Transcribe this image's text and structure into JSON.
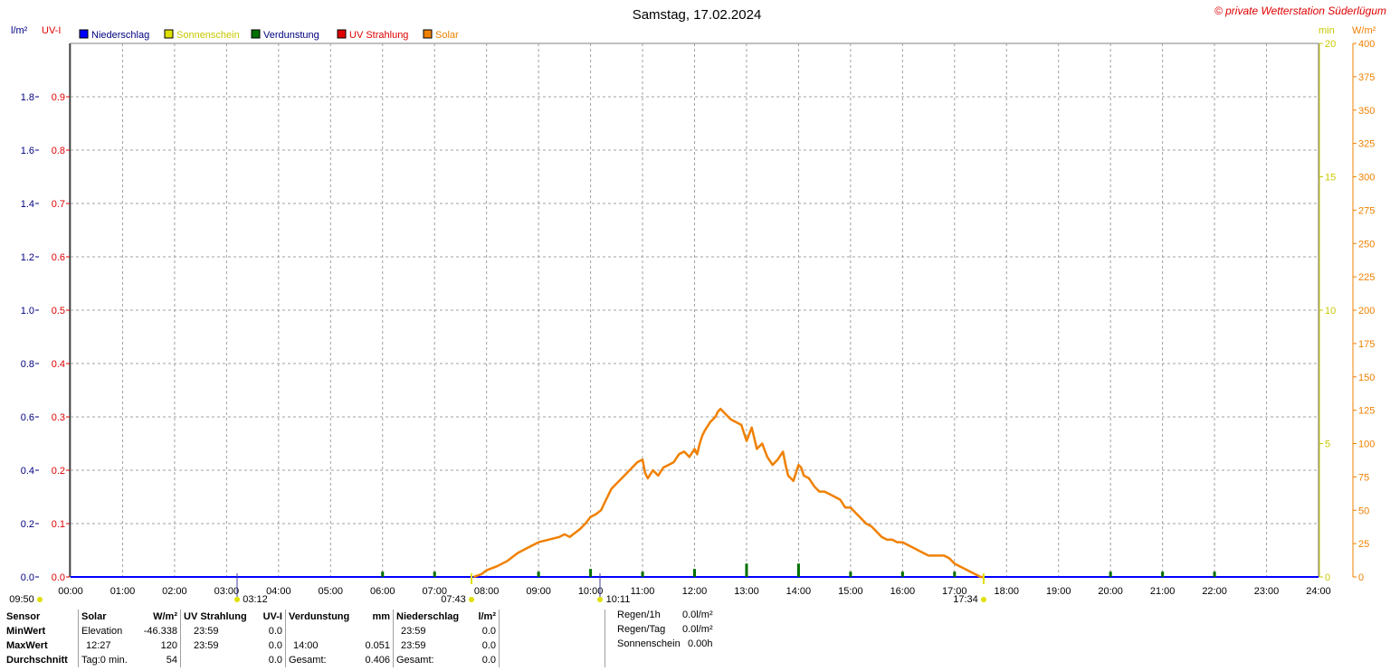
{
  "title": "Samstag, 17.02.2024",
  "copyright": "© private Wetterstation Süderlügum",
  "colors": {
    "niederschlag": "#0000ff",
    "sonnenschein": "#e0e000",
    "verdunstung": "#007000",
    "uv": "#e00000",
    "solar": "#f08000",
    "grid": "#a0a0a0"
  },
  "legend": [
    {
      "label": "Niederschlag",
      "color": "#0000ff",
      "text_color": "#000080"
    },
    {
      "label": "Sonnenschein",
      "color": "#e0e000",
      "text_color": "#c8c800"
    },
    {
      "label": "Verdunstung",
      "color": "#007000",
      "text_color": "#000080"
    },
    {
      "label": "UV Strahlung",
      "color": "#e00000",
      "text_color": "#e00000"
    },
    {
      "label": "Solar",
      "color": "#f08000",
      "text_color": "#f08000"
    }
  ],
  "chart_data": {
    "type": "line",
    "title": "Samstag, 17.02.2024",
    "x_ticks": [
      "00:00",
      "01:00",
      "02:00",
      "03:00",
      "04:00",
      "05:00",
      "06:00",
      "07:00",
      "08:00",
      "09:00",
      "10:00",
      "11:00",
      "12:00",
      "13:00",
      "14:00",
      "15:00",
      "16:00",
      "17:00",
      "18:00",
      "19:00",
      "20:00",
      "21:00",
      "22:00",
      "23:00",
      "24:00"
    ],
    "axes": {
      "niederschlag": {
        "unit": "l/m²",
        "range": [
          0,
          2.0
        ],
        "ticks": [
          "0.0",
          "0.2",
          "0.4",
          "0.6",
          "0.8",
          "1.0",
          "1.2",
          "1.4",
          "1.6",
          "1.8"
        ]
      },
      "uv": {
        "unit": "UV-I",
        "range": [
          0,
          1.0
        ],
        "ticks": [
          "0.0",
          "0.1",
          "0.2",
          "0.3",
          "0.4",
          "0.5",
          "0.6",
          "0.7",
          "0.8",
          "0.9"
        ]
      },
      "sonnenschein": {
        "unit": "min",
        "range": [
          0,
          20
        ],
        "ticks": [
          "0",
          "5",
          "10",
          "15",
          "20"
        ]
      },
      "solar": {
        "unit": "W/m²",
        "range": [
          0,
          400
        ],
        "ticks": [
          "0",
          "25",
          "50",
          "75",
          "100",
          "125",
          "150",
          "175",
          "200",
          "225",
          "250",
          "275",
          "300",
          "325",
          "350",
          "375",
          "400"
        ]
      }
    },
    "grid": true,
    "series": [
      {
        "name": "Solar",
        "axis": "solar",
        "x_hours": [
          7.75,
          7.9,
          8.0,
          8.2,
          8.4,
          8.6,
          8.8,
          9.0,
          9.2,
          9.4,
          9.5,
          9.6,
          9.8,
          9.9,
          10.0,
          10.1,
          10.2,
          10.3,
          10.4,
          10.5,
          10.6,
          10.7,
          10.8,
          10.9,
          11.0,
          11.05,
          11.1,
          11.2,
          11.3,
          11.4,
          11.5,
          11.6,
          11.7,
          11.8,
          11.9,
          12.0,
          12.05,
          12.1,
          12.15,
          12.2,
          12.3,
          12.4,
          12.45,
          12.5,
          12.6,
          12.7,
          12.8,
          12.9,
          13.0,
          13.1,
          13.2,
          13.3,
          13.4,
          13.5,
          13.6,
          13.7,
          13.75,
          13.8,
          13.9,
          14.0,
          14.05,
          14.1,
          14.2,
          14.3,
          14.4,
          14.5,
          14.6,
          14.7,
          14.8,
          14.9,
          15.0,
          15.1,
          15.2,
          15.3,
          15.4,
          15.5,
          15.6,
          15.7,
          15.8,
          15.9,
          16.0,
          16.1,
          16.2,
          16.3,
          16.4,
          16.5,
          16.6,
          16.7,
          16.8,
          16.9,
          17.0,
          17.1,
          17.2,
          17.3,
          17.4,
          17.5,
          17.55
        ],
        "values": [
          0,
          2,
          5,
          8,
          12,
          18,
          22,
          26,
          28,
          30,
          32,
          30,
          36,
          40,
          45,
          47,
          50,
          58,
          66,
          70,
          74,
          78,
          82,
          86,
          88,
          78,
          74,
          80,
          76,
          82,
          84,
          86,
          92,
          94,
          90,
          96,
          92,
          100,
          106,
          110,
          116,
          120,
          124,
          126,
          122,
          118,
          116,
          114,
          102,
          112,
          96,
          100,
          90,
          84,
          88,
          94,
          84,
          76,
          72,
          84,
          82,
          76,
          74,
          68,
          64,
          64,
          62,
          60,
          58,
          52,
          52,
          48,
          44,
          40,
          38,
          34,
          30,
          28,
          28,
          26,
          26,
          24,
          22,
          20,
          18,
          16,
          16,
          16,
          16,
          14,
          10,
          8,
          6,
          4,
          2,
          0,
          0
        ]
      },
      {
        "name": "Verdunstung",
        "axis": "niederschlag",
        "x_hours": [
          6,
          7,
          9,
          10,
          11,
          12,
          13,
          14,
          15,
          16,
          17,
          20,
          21,
          22
        ],
        "values": [
          0.02,
          0.02,
          0.02,
          0.03,
          0.02,
          0.03,
          0.05,
          0.05,
          0.02,
          0.02,
          0.02,
          0.02,
          0.02,
          0.02
        ]
      },
      {
        "name": "Sonnenschein",
        "axis": "sonnenschein",
        "x_hours": [],
        "values": []
      }
    ]
  },
  "markers": [
    {
      "label": "09:50",
      "x_hour": 0.0,
      "color": "#e0e000"
    },
    {
      "label": "03:12",
      "x_hour": 3.2,
      "color": "#e0e000"
    },
    {
      "label": "07:43",
      "x_hour": 7.72,
      "color": "#e0e000"
    },
    {
      "label": "10:11",
      "x_hour": 10.18,
      "color": "#e0e000"
    },
    {
      "label": "17:34",
      "x_hour": 17.57,
      "color": "#e0e000"
    }
  ],
  "stats": {
    "sensor": {
      "header": "Sensor",
      "rows": [
        "MinWert",
        "MaxWert",
        "Durchschnitt"
      ]
    },
    "solar": {
      "header": "Solar",
      "unit": "W/m²",
      "rows": [
        {
          "time": "Elevation",
          "value": "-46.338"
        },
        {
          "time": "12:27",
          "value": "120"
        },
        {
          "time": "Tag:0 min.",
          "value": "54"
        }
      ]
    },
    "uv": {
      "header": "UV Strahlung",
      "unit": "UV-I",
      "rows": [
        {
          "time": "23:59",
          "value": "0.0"
        },
        {
          "time": "23:59",
          "value": "0.0"
        },
        {
          "time": "",
          "value": "0.0"
        }
      ]
    },
    "verdunstung": {
      "header": "Verdunstung",
      "unit": "mm",
      "rows": [
        {
          "time": "",
          "value": ""
        },
        {
          "time": "14:00",
          "value": "0.051"
        },
        {
          "time": "Gesamt:",
          "value": "0.406"
        }
      ]
    },
    "niederschlag": {
      "header": "Niederschlag",
      "unit": "l/m²",
      "rows": [
        {
          "time": "23:59",
          "value": "0.0"
        },
        {
          "time": "23:59",
          "value": "0.0"
        },
        {
          "time": "Gesamt:",
          "value": "0.0"
        }
      ]
    },
    "summary": [
      {
        "label": "Regen/1h",
        "value": "0.0l/m²"
      },
      {
        "label": "Regen/Tag",
        "value": "0.0l/m²"
      },
      {
        "label": "Sonnenschein",
        "value": "0.00h"
      }
    ]
  }
}
